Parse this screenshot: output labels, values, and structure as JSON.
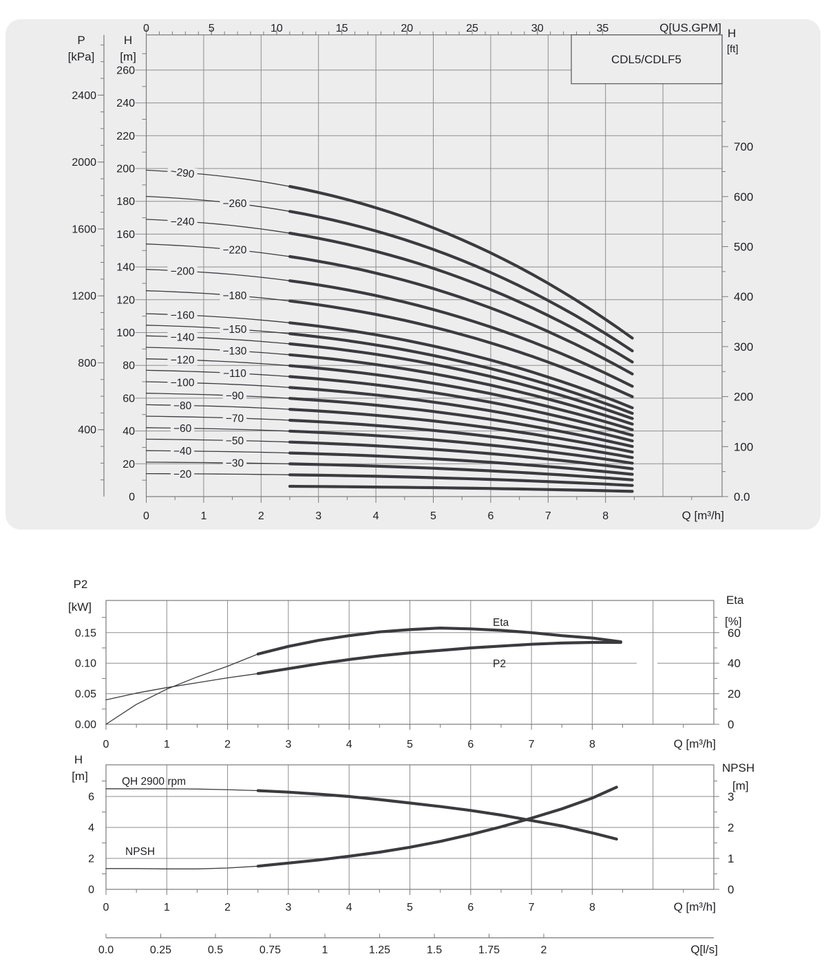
{
  "page": {
    "background": "#ffffff",
    "panel_background": "#ededee",
    "grid_color": "#8d8d8d",
    "frame_color": "#7a7a7a",
    "curve_color": "#3b3b3f",
    "text_color": "#222226",
    "box_border_color": "#555558"
  },
  "chart_data": [
    {
      "type": "line",
      "name": "pump-family-qh-curves",
      "title_box": "CDL5/CDLF5",
      "p_axis": {
        "line1": "P",
        "line2": "[kPa]",
        "ticks": [
          2400,
          2000,
          1600,
          1200,
          800,
          400
        ]
      },
      "h_axis": {
        "line1": "H",
        "line2": "[m]",
        "ticks": [
          260,
          240,
          220,
          200,
          180,
          160,
          140,
          120,
          100,
          80,
          60,
          40,
          20,
          0
        ]
      },
      "gpm_axis": {
        "label": "Q[US.GPM]",
        "ticks": [
          0,
          5,
          10,
          15,
          20,
          25,
          30,
          35
        ]
      },
      "ft_axis": {
        "line1": "H",
        "line2": "[ft]",
        "ticks": [
          "700",
          "600",
          "500",
          "400",
          "300",
          "200",
          "100",
          "0.0"
        ]
      },
      "q_axis": {
        "label": "Q [m³/h]",
        "ticks": [
          0,
          1,
          2,
          3,
          4,
          5,
          6,
          7,
          8
        ],
        "range": [
          0,
          10
        ]
      },
      "h_range_m": [
        0,
        281
      ],
      "q_end": 8.47,
      "q_bold_start": 2.5,
      "shape": {
        "lin": 0.08,
        "quad": 0.435,
        "exp": 2.3,
        "end_ratio": 0.485
      },
      "curves": [
        {
          "label": "−290",
          "h0_m": 199,
          "label_col": "A",
          "tilt_deg": 8
        },
        {
          "label": "−260",
          "h0_m": 183,
          "label_col": "B"
        },
        {
          "label": "−240",
          "h0_m": 169,
          "label_col": "A"
        },
        {
          "label": "−220",
          "h0_m": 154,
          "label_col": "B"
        },
        {
          "label": "−200",
          "h0_m": 138.5,
          "label_col": "A"
        },
        {
          "label": "−180",
          "h0_m": 125.5,
          "label_col": "B"
        },
        {
          "label": "−160",
          "h0_m": 111.5,
          "label_col": "A"
        },
        {
          "label": "−150",
          "h0_m": 104.5,
          "label_col": "B"
        },
        {
          "label": "−140",
          "h0_m": 98,
          "label_col": "A"
        },
        {
          "label": "−130",
          "h0_m": 91,
          "label_col": "B"
        },
        {
          "label": "−120",
          "h0_m": 84,
          "label_col": "A"
        },
        {
          "label": "−110",
          "h0_m": 77,
          "label_col": "B"
        },
        {
          "label": "−100",
          "h0_m": 70,
          "label_col": "A"
        },
        {
          "label": "−90",
          "h0_m": 63,
          "label_col": "B"
        },
        {
          "label": "−80",
          "h0_m": 56,
          "label_col": "A"
        },
        {
          "label": "−70",
          "h0_m": 49,
          "label_col": "B"
        },
        {
          "label": "−60",
          "h0_m": 42,
          "label_col": "A"
        },
        {
          "label": "−50",
          "h0_m": 35,
          "label_col": "B"
        },
        {
          "label": "−40",
          "h0_m": 28,
          "label_col": "A"
        },
        {
          "label": "−30",
          "h0_m": 21,
          "label_col": "B"
        },
        {
          "label": "−20",
          "h0_m": 14,
          "label_col": "A"
        },
        {
          "label": null,
          "h0_m": 6.6,
          "bold_only": true
        }
      ]
    },
    {
      "type": "line",
      "name": "power-efficiency-curves",
      "left_axis": {
        "line1": "P2",
        "line2": "[kW]",
        "ticks": [
          "0.15",
          "0.10",
          "0.05",
          "0.00"
        ],
        "range_kw": [
          0,
          0.2
        ]
      },
      "right_axis": {
        "line1": "Eta",
        "line2": "[%]",
        "ticks": [
          60,
          40,
          20,
          0
        ],
        "range_pct": [
          0,
          81
        ]
      },
      "q_axis": {
        "label": "Q [m³/h]",
        "ticks": [
          0,
          1,
          2,
          3,
          4,
          5,
          6,
          7,
          8
        ],
        "range": [
          0,
          10
        ]
      },
      "q_bold_start": 2.5,
      "series": [
        {
          "name": "Eta",
          "axis": "right",
          "label": "Eta",
          "points": [
            [
              0,
              0
            ],
            [
              0.5,
              13
            ],
            [
              1,
              23
            ],
            [
              1.5,
              31
            ],
            [
              2,
              38
            ],
            [
              2.5,
              46
            ],
            [
              3,
              51
            ],
            [
              3.5,
              55
            ],
            [
              4,
              58
            ],
            [
              4.5,
              60.5
            ],
            [
              5,
              62
            ],
            [
              5.5,
              63
            ],
            [
              6,
              62.5
            ],
            [
              6.5,
              61.5
            ],
            [
              7,
              60
            ],
            [
              7.5,
              58
            ],
            [
              8,
              56.5
            ],
            [
              8.47,
              54
            ]
          ]
        },
        {
          "name": "P2",
          "axis": "left",
          "label": "P2",
          "points": [
            [
              0,
              0.04
            ],
            [
              0.5,
              0.051
            ],
            [
              1,
              0.06
            ],
            [
              1.5,
              0.068
            ],
            [
              2,
              0.076
            ],
            [
              2.5,
              0.083
            ],
            [
              3,
              0.091
            ],
            [
              3.5,
              0.099
            ],
            [
              4,
              0.106
            ],
            [
              4.5,
              0.112
            ],
            [
              5,
              0.117
            ],
            [
              5.5,
              0.121
            ],
            [
              6,
              0.125
            ],
            [
              6.5,
              0.128
            ],
            [
              7,
              0.131
            ],
            [
              7.5,
              0.133
            ],
            [
              8,
              0.134
            ],
            [
              8.47,
              0.134
            ]
          ]
        }
      ]
    },
    {
      "type": "line",
      "name": "single-stage-qh-npsh-curves",
      "left_axis": {
        "line1": "H",
        "line2": "[m]",
        "ticks": [
          6,
          4,
          2,
          0
        ],
        "range_m": [
          0,
          8
        ]
      },
      "right_axis": {
        "line1": "NPSH",
        "line2": "[m]",
        "ticks": [
          3,
          2,
          1,
          0
        ],
        "range_m": [
          0,
          4
        ]
      },
      "q_axis": {
        "label": "Q [m³/h]",
        "ticks": [
          0,
          1,
          2,
          3,
          4,
          5,
          6,
          7,
          8
        ],
        "range": [
          0,
          10
        ]
      },
      "lps_axis": {
        "label": "Q[l/s]",
        "ticks": [
          "0.0",
          "0.25",
          "0.5",
          "0.75",
          "1",
          "1.25",
          "1.5",
          "1.75",
          "2"
        ]
      },
      "q_bold_start": 2.5,
      "series": [
        {
          "name": "QH",
          "axis": "left",
          "label": "QH 2900 rpm",
          "points": [
            [
              0,
              6.5
            ],
            [
              0.5,
              6.5
            ],
            [
              1,
              6.5
            ],
            [
              1.5,
              6.48
            ],
            [
              2,
              6.44
            ],
            [
              2.5,
              6.38
            ],
            [
              3,
              6.28
            ],
            [
              3.5,
              6.15
            ],
            [
              4,
              6.0
            ],
            [
              4.5,
              5.8
            ],
            [
              5,
              5.58
            ],
            [
              5.5,
              5.35
            ],
            [
              6,
              5.1
            ],
            [
              6.5,
              4.8
            ],
            [
              7,
              4.45
            ],
            [
              7.5,
              4.1
            ],
            [
              8,
              3.65
            ],
            [
              8.4,
              3.25
            ]
          ]
        },
        {
          "name": "NPSH",
          "axis": "right",
          "label": "NPSH",
          "points": [
            [
              0,
              0.67
            ],
            [
              0.5,
              0.67
            ],
            [
              1,
              0.66
            ],
            [
              1.5,
              0.66
            ],
            [
              2,
              0.69
            ],
            [
              2.5,
              0.75
            ],
            [
              3,
              0.85
            ],
            [
              3.5,
              0.95
            ],
            [
              4,
              1.07
            ],
            [
              4.5,
              1.2
            ],
            [
              5,
              1.36
            ],
            [
              5.5,
              1.55
            ],
            [
              6,
              1.77
            ],
            [
              6.5,
              2.02
            ],
            [
              7,
              2.3
            ],
            [
              7.5,
              2.6
            ],
            [
              8,
              2.95
            ],
            [
              8.4,
              3.3
            ]
          ]
        }
      ]
    }
  ]
}
